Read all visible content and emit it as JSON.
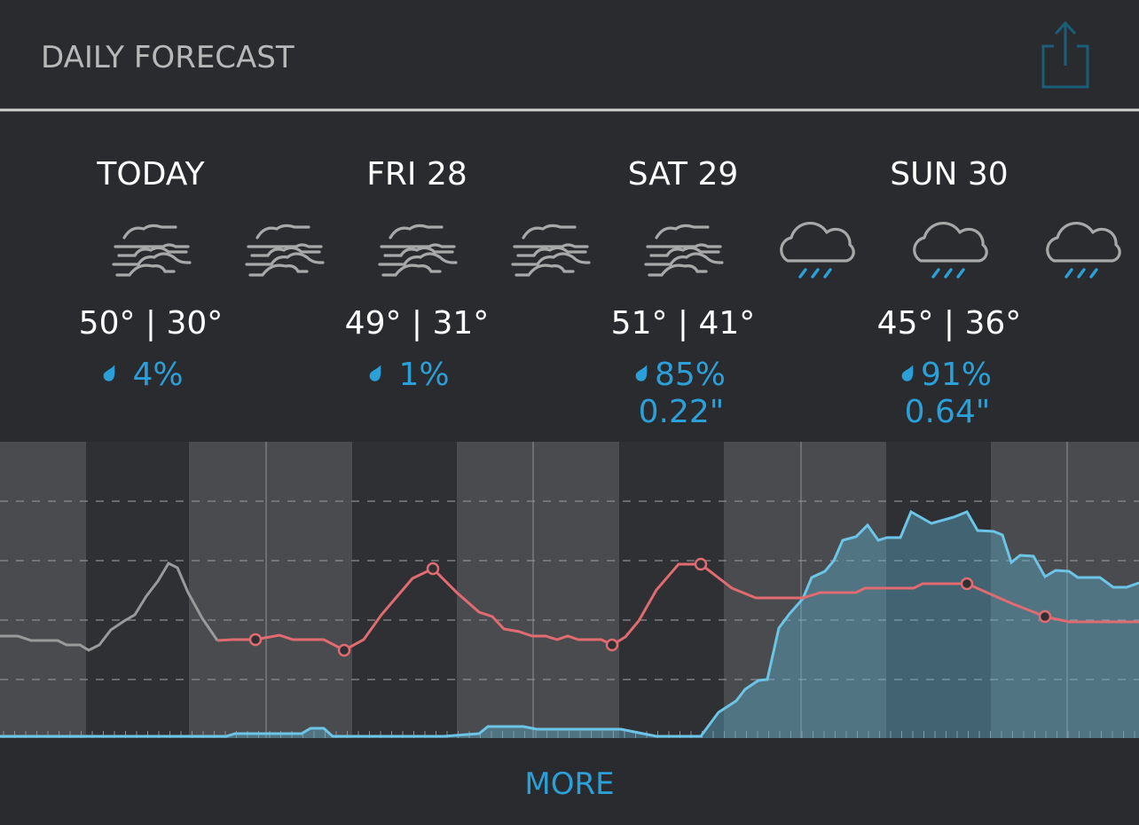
{
  "header": {
    "title": "DAILY FORECAST"
  },
  "days": [
    {
      "label": "TODAY",
      "temps": "50° | 30°",
      "precip": "4%"
    },
    {
      "label": "FRI 28",
      "temps": "49° | 31°",
      "precip": "1%"
    },
    {
      "label": "SAT 29",
      "temps": "51° | 41°",
      "precip": "85%",
      "amount": "0.22\""
    },
    {
      "label": "SUN 30",
      "temps": "45° | 36°",
      "precip": "91%",
      "amount": "0.64\""
    }
  ],
  "footer": {
    "button": "MORE"
  }
}
